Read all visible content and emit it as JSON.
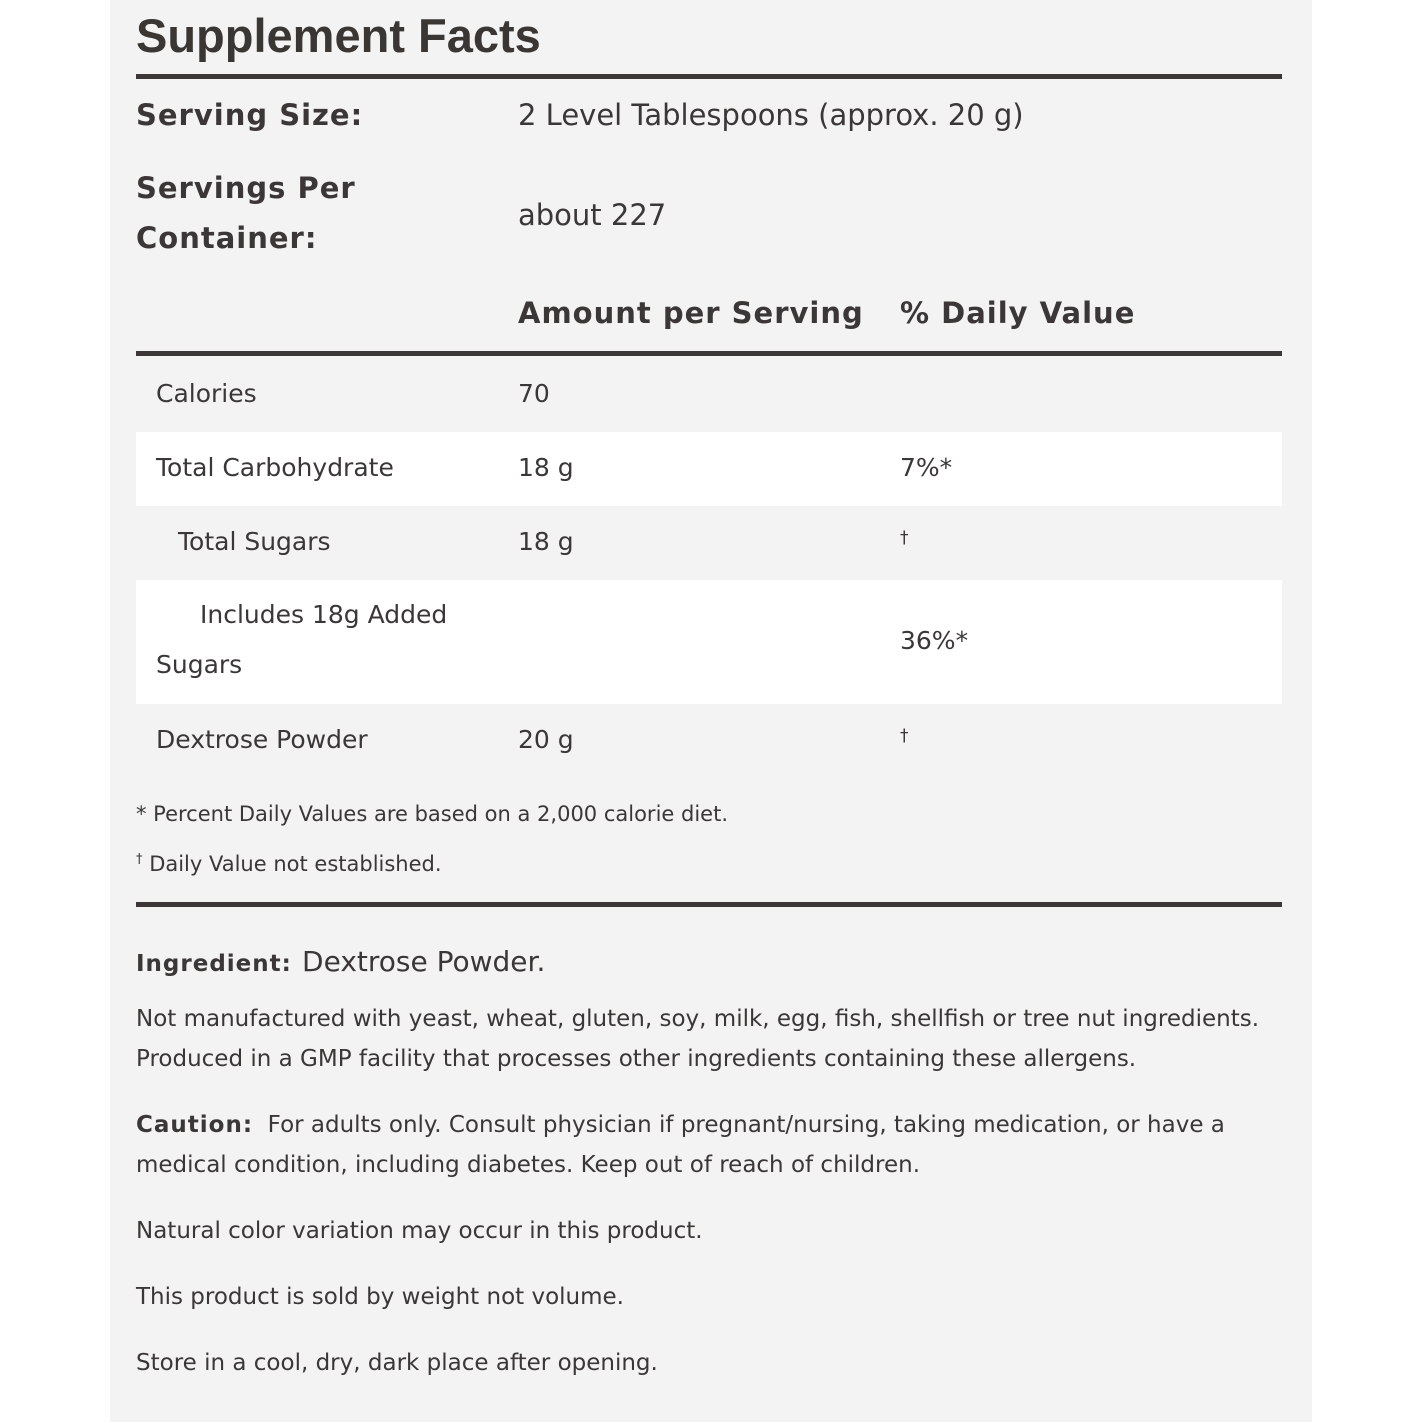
{
  "title": "Supplement Facts",
  "serving_size": {
    "label": "Serving Size:",
    "value": "2 Level Tablespoons (approx. 20 g)"
  },
  "servings_per_container": {
    "label_line1": "Servings Per",
    "label_line2": "Container:",
    "value": "about 227"
  },
  "columns": {
    "amount": "Amount per Serving",
    "daily_value": "% Daily Value"
  },
  "rows": [
    {
      "name": "Calories",
      "amount": "70",
      "dv": ""
    },
    {
      "name": "Total Carbohydrate",
      "amount": "18 g",
      "dv": "7%*"
    },
    {
      "name": "Total Sugars",
      "amount": "18 g",
      "dv": "†"
    },
    {
      "name_line1": "Includes 18g Added",
      "name_line2": "Sugars",
      "amount": "",
      "dv": "36%*"
    },
    {
      "name": "Dextrose Powder",
      "amount": "20 g",
      "dv": "†"
    }
  ],
  "footnotes": [
    "* Percent Daily Values are based on a 2,000 calorie diet.",
    "Daily Value not established."
  ],
  "footnote_dagger": "†",
  "ingredient": {
    "label": "Ingredient:",
    "value": "Dextrose Powder."
  },
  "allergen": [
    "Not manufactured with yeast, wheat, gluten, soy, milk, egg, fish, shellfish or tree nut ingredients.",
    "Produced in a GMP facility that processes other ingredients containing these allergens."
  ],
  "caution": {
    "label": "Caution:",
    "line1": "For adults only. Consult physician if pregnant/nursing, taking medication, or have a",
    "line2": "medical condition, including diabetes. Keep out of reach of children."
  },
  "notes": [
    "Natural color variation may occur in this product.",
    "This product is sold by weight not volume.",
    "Store in a cool, dry, dark place after opening."
  ]
}
